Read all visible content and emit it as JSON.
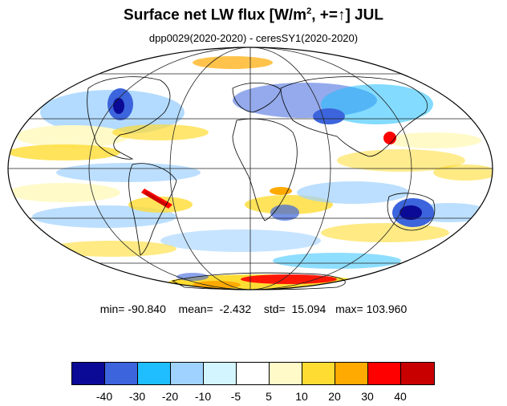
{
  "title": {
    "main": "Surface net LW flux [W/m",
    "sup": "2",
    "rest": ", +=↑]  JUL"
  },
  "subtitle": "dpp0029(2020-2020) - ceresSY1(2020-2020)",
  "stats": {
    "min": "min= -90.840",
    "mean": "mean=  -2.432",
    "std": "std=  15.094",
    "max": "max= 103.960"
  },
  "colorbar": {
    "colors": [
      "#0a0a96",
      "#3c64dc",
      "#1ebeff",
      "#a0d2ff",
      "#d2f5ff",
      "#ffffff",
      "#fffac8",
      "#ffdc32",
      "#ffaa00",
      "#ff0000",
      "#c80000"
    ],
    "labels": [
      "-40",
      "-30",
      "-20",
      "-10",
      "-5",
      "5",
      "10",
      "20",
      "30",
      "40"
    ]
  }
}
